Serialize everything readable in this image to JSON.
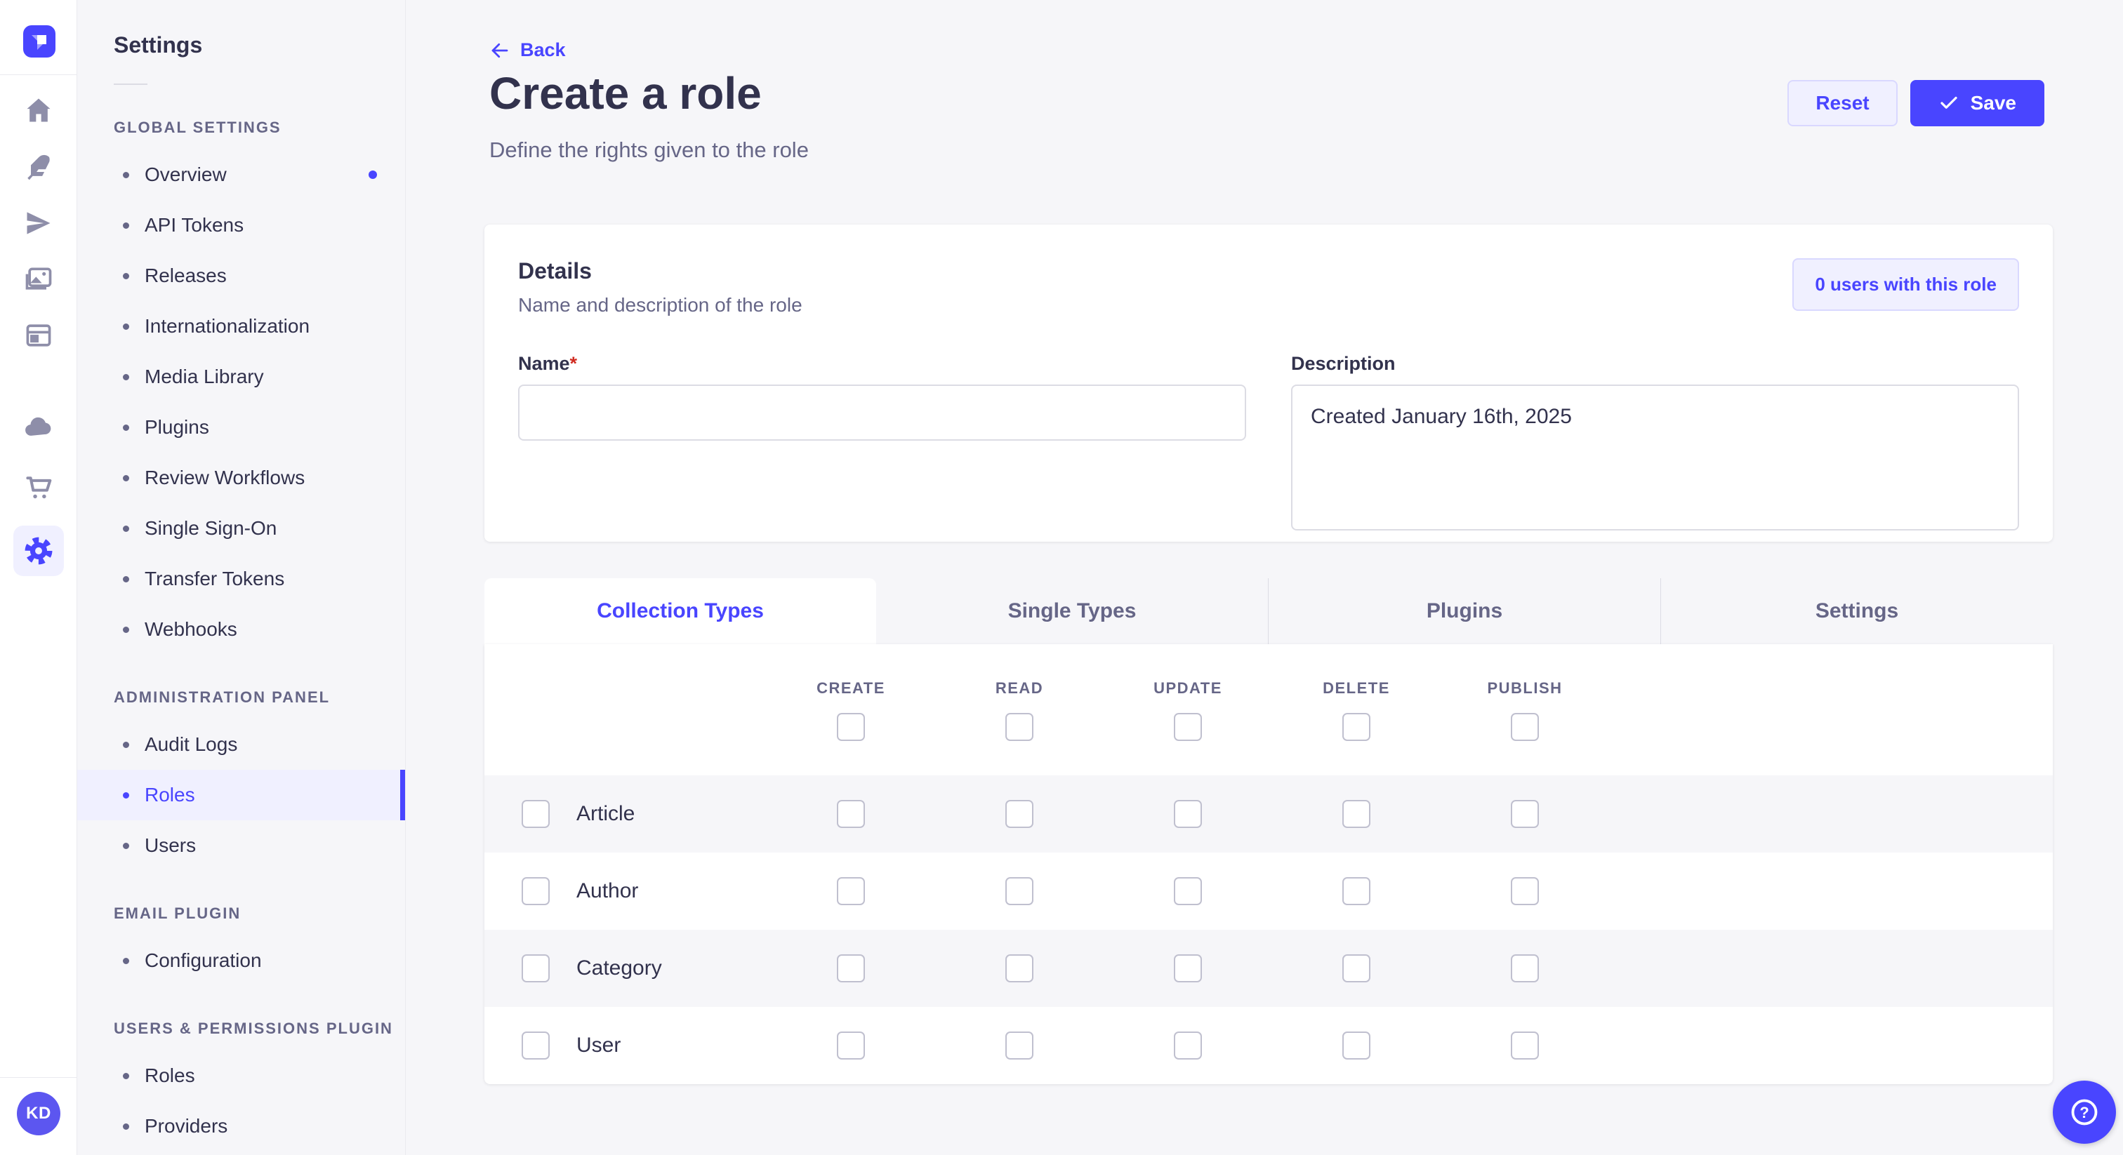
{
  "colors": {
    "primary": "#4945ff",
    "primary_light": "#f0f0ff",
    "primary_border": "#d9d8ff",
    "bg": "#f6f6f9",
    "card": "#ffffff",
    "border": "#eaeaef",
    "input_border": "#dcdce4",
    "cb_border": "#c0c0cf",
    "text": "#32324d",
    "text_muted": "#666687",
    "icon": "#8e8ea9",
    "danger": "#d02b20",
    "avatar_bg": "#5c56f0"
  },
  "nav": {
    "logo_icon": "strapi-logo-icon",
    "icons": [
      {
        "name": "home-icon"
      },
      {
        "name": "feather-icon"
      },
      {
        "name": "send-icon"
      },
      {
        "name": "media-library-icon"
      },
      {
        "name": "layout-icon"
      },
      {
        "name": "cloud-icon"
      },
      {
        "name": "cart-icon"
      },
      {
        "name": "gear-icon",
        "active": true
      }
    ],
    "avatar_initials": "KD"
  },
  "sidebar": {
    "title": "Settings",
    "sections": [
      {
        "label": "GLOBAL SETTINGS",
        "items": [
          {
            "label": "Overview",
            "has_notification": true
          },
          {
            "label": "API Tokens"
          },
          {
            "label": "Releases"
          },
          {
            "label": "Internationalization"
          },
          {
            "label": "Media Library"
          },
          {
            "label": "Plugins"
          },
          {
            "label": "Review Workflows"
          },
          {
            "label": "Single Sign-On"
          },
          {
            "label": "Transfer Tokens"
          },
          {
            "label": "Webhooks"
          }
        ]
      },
      {
        "label": "ADMINISTRATION PANEL",
        "items": [
          {
            "label": "Audit Logs"
          },
          {
            "label": "Roles",
            "active": true
          },
          {
            "label": "Users"
          }
        ]
      },
      {
        "label": "EMAIL PLUGIN",
        "items": [
          {
            "label": "Configuration"
          }
        ]
      },
      {
        "label": "USERS & PERMISSIONS PLUGIN",
        "items": [
          {
            "label": "Roles"
          },
          {
            "label": "Providers"
          }
        ]
      }
    ]
  },
  "header": {
    "back_label": "Back",
    "back_icon": "arrow-left-icon",
    "title": "Create a role",
    "subtitle": "Define the rights given to the role",
    "reset_label": "Reset",
    "save_label": "Save",
    "save_icon": "check-icon"
  },
  "details_card": {
    "title": "Details",
    "subtitle": "Name and description of the role",
    "users_button": "0 users with this role",
    "name_label": "Name",
    "required_mark": "*",
    "name_value": "",
    "description_label": "Description",
    "description_value": "Created January 16th, 2025"
  },
  "tabs": [
    {
      "label": "Collection Types",
      "active": true
    },
    {
      "label": "Single Types"
    },
    {
      "label": "Plugins"
    },
    {
      "label": "Settings"
    }
  ],
  "permissions_table": {
    "columns": [
      "CREATE",
      "READ",
      "UPDATE",
      "DELETE",
      "PUBLISH"
    ],
    "rows": [
      {
        "label": "Article",
        "checked": [
          false,
          false,
          false,
          false,
          false
        ]
      },
      {
        "label": "Author",
        "checked": [
          false,
          false,
          false,
          false,
          false
        ]
      },
      {
        "label": "Category",
        "checked": [
          false,
          false,
          false,
          false,
          false
        ]
      },
      {
        "label": "User",
        "checked": [
          false,
          false,
          false,
          false,
          false
        ]
      }
    ]
  },
  "help_button": {
    "icon": "question-circle-icon"
  }
}
